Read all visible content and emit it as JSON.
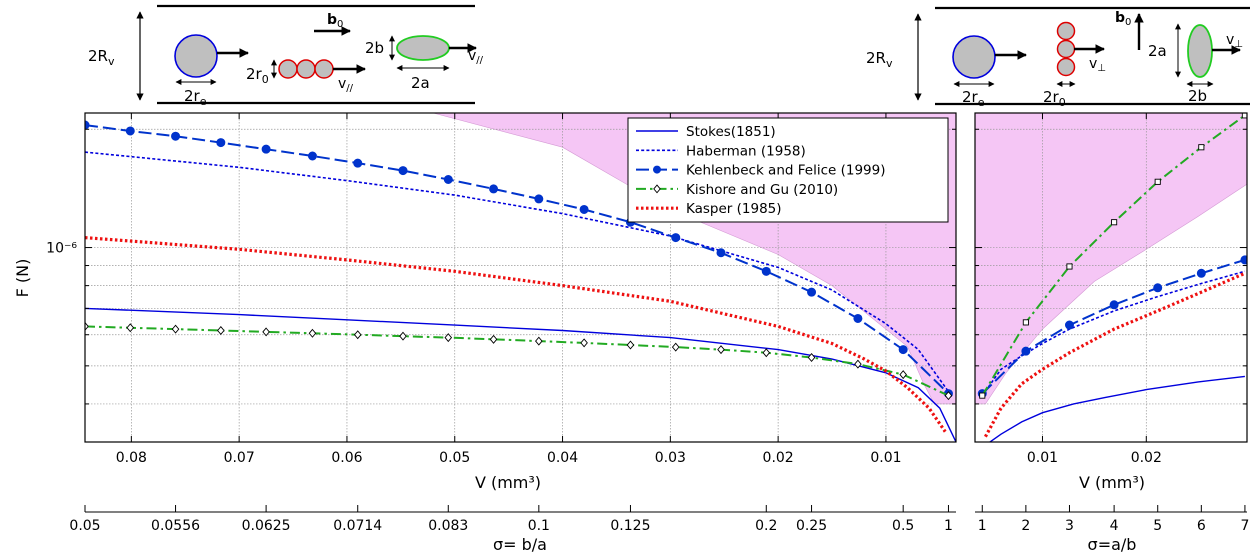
{
  "chart_data": [
    {
      "type": "line",
      "panel": "left",
      "xlabel": "V (mm³)",
      "ylabel": "F (N)",
      "yscale": "log",
      "x_reversed": true,
      "xlim": [
        0.0843,
        0.0035
      ],
      "ylim": [
        3.2e-07,
        2.2e-06
      ],
      "grid": true,
      "x_ticks": [
        0.08,
        0.07,
        0.06,
        0.05,
        0.04,
        0.03,
        0.02,
        0.01
      ],
      "x_tick_labels": [
        "0.08",
        "0.07",
        "0.06",
        "0.05",
        "0.04",
        "0.03",
        "0.02",
        "0.01"
      ],
      "y_tick_label": "10⁻⁶",
      "legend_position": "top-right",
      "secondary_axis": {
        "label": "σ= b/a",
        "tick_labels": [
          "0.05",
          "0.0556",
          "0.0625",
          "0.0714",
          "0.083",
          "0.1",
          "0.125",
          "0.2",
          "0.25",
          "0.5",
          "1"
        ],
        "tick_positions_V": [
          0.0843,
          0.0759,
          0.0675,
          0.059,
          0.0506,
          0.0422,
          0.0337,
          0.0211,
          0.0169,
          0.0084,
          0.0042
        ]
      },
      "shaded_region": {
        "color": "#f5c6f5",
        "upper": [
          [
            0.0843,
            3e-06
          ],
          [
            0.0035,
            3e-06
          ]
        ],
        "lower": [
          [
            0.052,
            2.2e-06
          ],
          [
            0.04,
            1.8e-06
          ],
          [
            0.03,
            1.25e-06
          ],
          [
            0.02,
            9.6e-07
          ],
          [
            0.015,
            8e-07
          ],
          [
            0.01,
            6.2e-07
          ],
          [
            0.008,
            5.6e-07
          ],
          [
            0.0065,
            4.5e-07
          ],
          [
            0.0055,
            4e-07
          ]
        ]
      },
      "series": [
        {
          "name": "Stokes(1851)",
          "color": "#0000dd",
          "style": "solid",
          "x": [
            0.0843,
            0.07,
            0.06,
            0.05,
            0.04,
            0.03,
            0.02,
            0.015,
            0.01,
            0.007,
            0.005,
            0.0035
          ],
          "y": [
            7e-07,
            6.75e-07,
            6.55e-07,
            6.35e-07,
            6.15e-07,
            5.9e-07,
            5.5e-07,
            5.2e-07,
            4.8e-07,
            4.4e-07,
            3.9e-07,
            3.2e-07
          ]
        },
        {
          "name": "Haberman (1958)",
          "color": "#0000dd",
          "style": "dotted",
          "x": [
            0.0843,
            0.07,
            0.06,
            0.05,
            0.04,
            0.03,
            0.02,
            0.015,
            0.01,
            0.007,
            0.0042
          ],
          "y": [
            1.75e-06,
            1.6e-06,
            1.48e-06,
            1.36e-06,
            1.22e-06,
            1.07e-06,
            8.9e-07,
            7.8e-07,
            6.4e-07,
            5.5e-07,
            4.3e-07
          ]
        },
        {
          "name": "Kehlenbeck and Felice (1999)",
          "color": "#0033cc",
          "style": "dashed",
          "marker": "filled-circle",
          "x": [
            0.0843,
            0.0801,
            0.0759,
            0.0717,
            0.0675,
            0.0632,
            0.059,
            0.0548,
            0.0506,
            0.0464,
            0.0422,
            0.038,
            0.0337,
            0.0295,
            0.0253,
            0.0211,
            0.0169,
            0.0126,
            0.0084,
            0.0042
          ],
          "y": [
            2.05e-06,
            1.98e-06,
            1.92e-06,
            1.85e-06,
            1.78e-06,
            1.71e-06,
            1.64e-06,
            1.57e-06,
            1.49e-06,
            1.41e-06,
            1.33e-06,
            1.25e-06,
            1.16e-06,
            1.06e-06,
            9.7e-07,
            8.7e-07,
            7.7e-07,
            6.6e-07,
            5.5e-07,
            4.25e-07
          ]
        },
        {
          "name": "Kishore and Gu (2010)",
          "color": "#22aa22",
          "style": "dashdot",
          "marker": "open-diamond",
          "x": [
            0.0843,
            0.0801,
            0.0759,
            0.0717,
            0.0675,
            0.0632,
            0.059,
            0.0548,
            0.0506,
            0.0464,
            0.0422,
            0.038,
            0.0337,
            0.0295,
            0.0253,
            0.0211,
            0.0169,
            0.0126,
            0.0084,
            0.0042
          ],
          "y": [
            6.3e-07,
            6.25e-07,
            6.2e-07,
            6.15e-07,
            6.1e-07,
            6.05e-07,
            6e-07,
            5.95e-07,
            5.9e-07,
            5.84e-07,
            5.78e-07,
            5.72e-07,
            5.65e-07,
            5.58e-07,
            5.5e-07,
            5.4e-07,
            5.25e-07,
            5.05e-07,
            4.75e-07,
            4.2e-07
          ]
        },
        {
          "name": "Kasper (1985)",
          "color": "#ee1111",
          "style": "dotted-thick",
          "x": [
            0.0843,
            0.07,
            0.06,
            0.05,
            0.04,
            0.03,
            0.02,
            0.015,
            0.012,
            0.01,
            0.008,
            0.006,
            0.0045
          ],
          "y": [
            1.06e-06,
            9.9e-07,
            9.3e-07,
            8.7e-07,
            8e-07,
            7.3e-07,
            6.3e-07,
            5.7e-07,
            5.2e-07,
            4.85e-07,
            4.4e-07,
            3.9e-07,
            3.4e-07
          ]
        }
      ]
    },
    {
      "type": "line",
      "panel": "right",
      "xlabel": "V (mm³)",
      "yscale": "log",
      "xlim": [
        0.0035,
        0.0297
      ],
      "ylim": [
        3.2e-07,
        2.2e-06
      ],
      "grid": true,
      "x_ticks": [
        0.01,
        0.02
      ],
      "x_tick_labels": [
        "0.01",
        "0.02"
      ],
      "secondary_axis": {
        "label": "σ=a/b",
        "tick_labels": [
          "1",
          "2",
          "3",
          "4",
          "5",
          "6",
          "7"
        ],
        "tick_positions_V": [
          0.0042,
          0.0084,
          0.0126,
          0.0169,
          0.0211,
          0.0253,
          0.0295
        ]
      },
      "shaded_region": {
        "color": "#f5c6f5",
        "upper": [
          [
            0.0035,
            3e-06
          ],
          [
            0.0297,
            3e-06
          ]
        ],
        "lower": [
          [
            0.0297,
            1.45e-06
          ],
          [
            0.025,
            1.2e-06
          ],
          [
            0.02,
            9.9e-07
          ],
          [
            0.015,
            8.2e-07
          ],
          [
            0.01,
            6.2e-07
          ],
          [
            0.0065,
            4.8e-07
          ],
          [
            0.0045,
            4e-07
          ]
        ],
        "lower_start": [
          0.0042,
          4e-07
        ]
      },
      "series": [
        {
          "name": "Stokes(1851)",
          "color": "#0000dd",
          "style": "solid",
          "x": [
            0.0042,
            0.006,
            0.008,
            0.01,
            0.013,
            0.016,
            0.02,
            0.025,
            0.0295
          ],
          "y": [
            3.1e-07,
            3.35e-07,
            3.6e-07,
            3.8e-07,
            4e-07,
            4.15e-07,
            4.35e-07,
            4.55e-07,
            4.7e-07
          ]
        },
        {
          "name": "Haberman (1958)",
          "color": "#0000dd",
          "style": "dotted",
          "x": [
            0.0042,
            0.006,
            0.008,
            0.01,
            0.0126,
            0.0169,
            0.0211,
            0.0253,
            0.0295
          ],
          "y": [
            4.2e-07,
            4.9e-07,
            5.3e-07,
            5.7e-07,
            6.2e-07,
            6.9e-07,
            7.5e-07,
            8.1e-07,
            8.7e-07
          ]
        },
        {
          "name": "Kehlenbeck and Felice (1999)",
          "color": "#0033cc",
          "style": "dashed",
          "marker": "filled-circle",
          "x": [
            0.0042,
            0.0084,
            0.0126,
            0.0169,
            0.0211,
            0.0253,
            0.0295
          ],
          "y": [
            4.25e-07,
            5.45e-07,
            6.35e-07,
            7.15e-07,
            7.9e-07,
            8.6e-07,
            9.3e-07
          ]
        },
        {
          "name": "Kishore and Gu (2010)",
          "color": "#22aa22",
          "style": "dashdot",
          "marker": "open-square",
          "x": [
            0.0042,
            0.0084,
            0.0126,
            0.0169,
            0.0211,
            0.0253,
            0.0295
          ],
          "y": [
            4.2e-07,
            6.45e-07,
            8.95e-07,
            1.16e-06,
            1.47e-06,
            1.8e-06,
            2.17e-06
          ]
        },
        {
          "name": "Kasper (1985)",
          "color": "#ee1111",
          "style": "dotted-thick",
          "x": [
            0.0045,
            0.006,
            0.008,
            0.01,
            0.0126,
            0.0169,
            0.0211,
            0.0253,
            0.0295
          ],
          "y": [
            3.3e-07,
            3.9e-07,
            4.5e-07,
            4.9e-07,
            5.4e-07,
            6.2e-07,
            6.9e-07,
            7.7e-07,
            8.6e-07
          ]
        }
      ]
    }
  ],
  "schematics": {
    "left": {
      "labels": {
        "Rv": "2R",
        "Rv_sub": "v",
        "re": "2r",
        "re_sub": "e",
        "r0": "2r",
        "r0_sub": "0",
        "v": "v",
        "v_sub": "//",
        "b0": "b",
        "b0_sub": "0",
        "b": "2b",
        "a": "2a",
        "v2": "v",
        "v2_sub": "//"
      }
    },
    "right": {
      "labels": {
        "Rv": "2R",
        "Rv_sub": "v",
        "re": "2r",
        "re_sub": "e",
        "r0": "2r",
        "r0_sub": "0",
        "v": "v",
        "v_sub": "⊥",
        "b0": "b",
        "b0_sub": "0",
        "a": "2a",
        "b": "2b",
        "v2": "v",
        "v2_sub": "⊥"
      }
    }
  }
}
